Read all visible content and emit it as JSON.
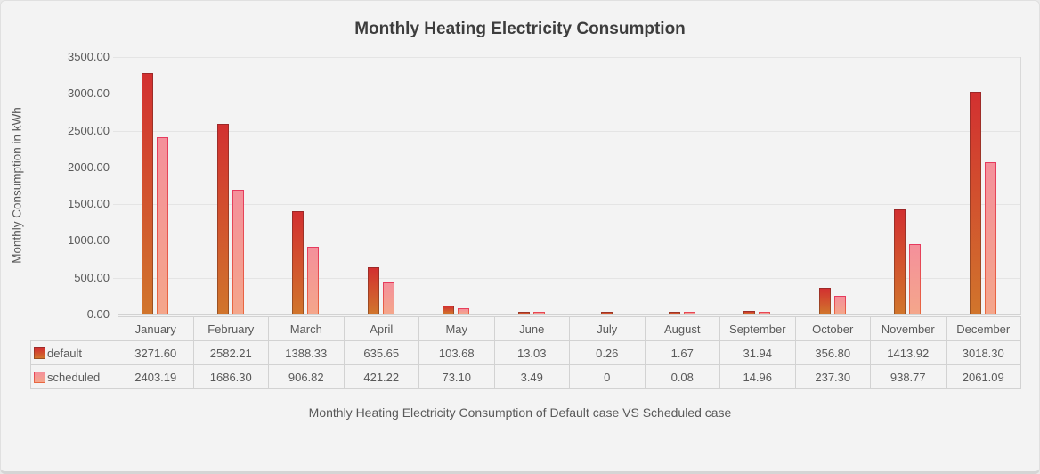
{
  "title": "Monthly Heating Electricity Consumption",
  "caption": "Monthly Heating Electricity Consumption of Default case VS Scheduled case",
  "chart_data": {
    "type": "bar",
    "title": "Monthly Heating Electricity Consumption",
    "xlabel": "",
    "ylabel": "Monthly Consumption in kWh",
    "ylim": [
      0,
      3500
    ],
    "ytick_step": 500,
    "ytick_labels": [
      "3500.00",
      "3000.00",
      "2500.00",
      "2000.00",
      "1500.00",
      "1000.00",
      "500.00",
      "0.00"
    ],
    "grid": true,
    "legend_position": "table-left",
    "categories": [
      "January",
      "February",
      "March",
      "April",
      "May",
      "June",
      "July",
      "August",
      "September",
      "October",
      "November",
      "December"
    ],
    "series": [
      {
        "name": "default",
        "values": [
          3271.6,
          2582.21,
          1388.33,
          635.65,
          103.68,
          13.03,
          0.26,
          1.67,
          31.94,
          356.8,
          1413.92,
          3018.3
        ],
        "value_labels": [
          "3271.60",
          "2582.21",
          "1388.33",
          "635.65",
          "103.68",
          "13.03",
          "0.26",
          "1.67",
          "31.94",
          "356.80",
          "1413.92",
          "3018.30"
        ],
        "fill_top": "#d23030",
        "fill_bottom": "#d1752c",
        "border_top": "#9d2828",
        "border_bottom": "#9b5322"
      },
      {
        "name": "scheduled",
        "values": [
          2403.19,
          1686.3,
          906.82,
          421.22,
          73.1,
          3.49,
          0,
          0.08,
          14.96,
          237.3,
          938.77,
          2061.09
        ],
        "value_labels": [
          "2403.19",
          "1686.30",
          "906.82",
          "421.22",
          "73.10",
          "3.49",
          "0",
          "0.08",
          "14.96",
          "237.30",
          "938.77",
          "2061.09"
        ],
        "fill_top": "#f4909b",
        "fill_bottom": "#f4a68b",
        "border_top": "#e63a5e",
        "border_bottom": "#e8693f"
      }
    ],
    "colors": {
      "background": "#f3f3f3",
      "grid": "#e4e4e4",
      "axis": "#d2d2d2",
      "text": "#595959",
      "title_text": "#3d3d3d"
    }
  }
}
